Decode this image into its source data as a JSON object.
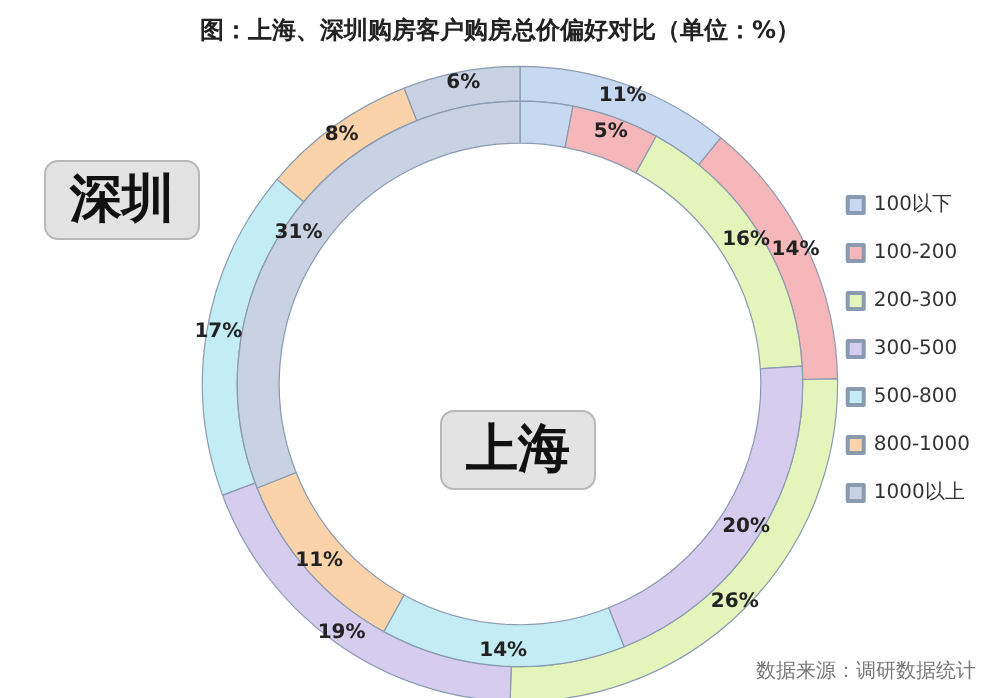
{
  "chart_data": {
    "type": "donut",
    "title": "图：上海、深圳购房客户购房总价偏好对比（单位：%）",
    "categories": [
      "100以下",
      "100-200",
      "200-300",
      "300-500",
      "500-800",
      "800-1000",
      "1000以上"
    ],
    "colors": [
      "#c6d9f1",
      "#f5b7b9",
      "#e4f5bc",
      "#d5ccee",
      "#c4ecf5",
      "#fbd3aa",
      "#c8d2e2"
    ],
    "series": [
      {
        "name": "深圳",
        "values": [
          11,
          14,
          26,
          19,
          17,
          8,
          6
        ],
        "value_labels": [
          "11%",
          "14%",
          "26%",
          "19%",
          "17%",
          "8%",
          "6%"
        ]
      },
      {
        "name": "上海",
        "values": [
          3,
          5,
          16,
          20,
          14,
          11,
          31
        ],
        "value_labels": [
          null,
          "5%",
          "16%",
          "20%",
          "14%",
          "11%",
          "31%"
        ]
      }
    ],
    "legend": "right",
    "annotations": [
      "数据来源：调研数据统计"
    ]
  }
}
